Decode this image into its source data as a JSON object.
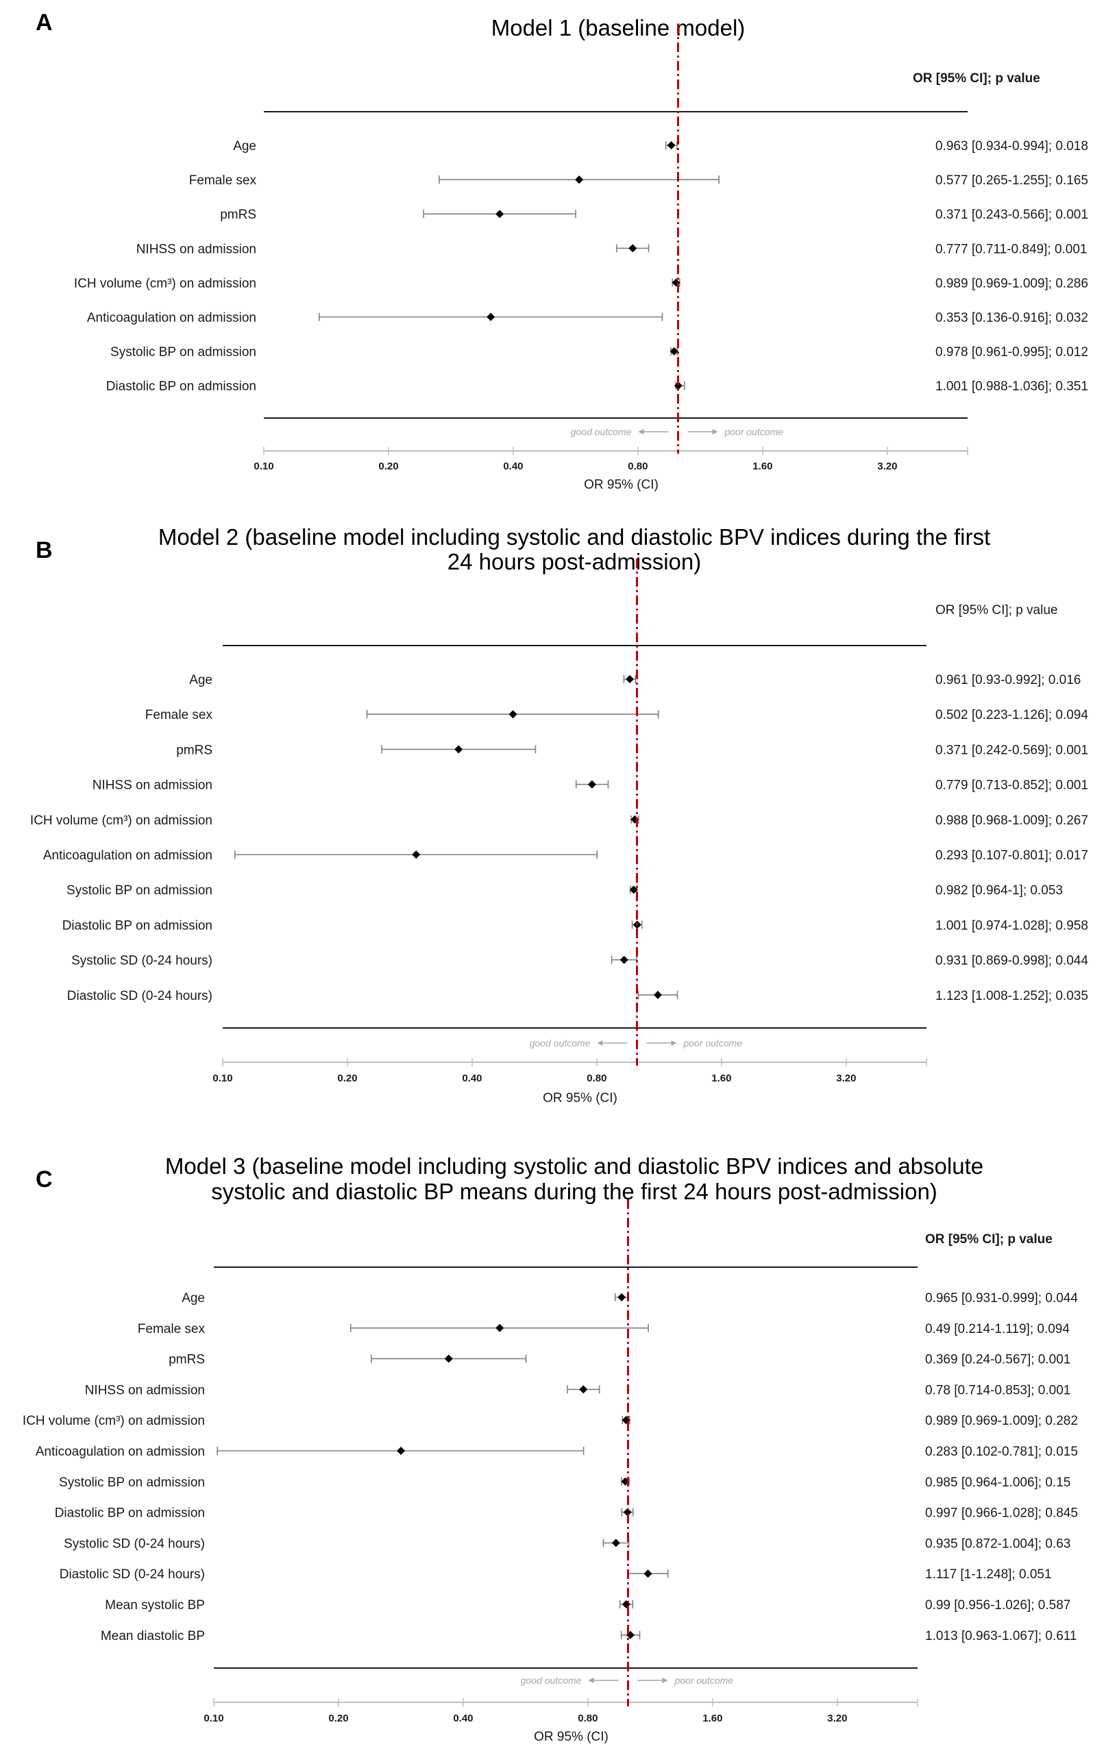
{
  "colors": {
    "reference_line": "#c00000",
    "marker": "#000000",
    "whisker": "#808080",
    "axis": "#bfbfbf",
    "rule": "#1a1a1a",
    "direction_text": "#a6a6a6"
  },
  "chart_data": [
    {
      "type": "forest",
      "panel_label": "A",
      "title": "Model 1 (baseline model)",
      "header": "OR [95% CI]; p value",
      "header_bold": true,
      "xlabel": "OR 95% (CI)",
      "x_scale": "log2",
      "xlim": [
        0.1,
        5.0
      ],
      "ticks": [
        0.1,
        0.2,
        0.4,
        0.8,
        1.6,
        3.2
      ],
      "tick_labels": [
        "0.10",
        "0.20",
        "0.40",
        "0.80",
        "1.60",
        "3.20"
      ],
      "reference_value": 1.0,
      "direction_labels": {
        "left": "good outcome",
        "right": "poor outcome"
      },
      "rows": [
        {
          "label": "Age",
          "or": 0.963,
          "lower": 0.934,
          "upper": 0.994,
          "text": "0.963 [0.934-0.994];  0.018"
        },
        {
          "label": "Female sex",
          "or": 0.577,
          "lower": 0.265,
          "upper": 1.255,
          "text": "0.577 [0.265-1.255];  0.165"
        },
        {
          "label": "pmRS",
          "or": 0.371,
          "lower": 0.243,
          "upper": 0.566,
          "text": "0.371 [0.243-0.566];  0.001"
        },
        {
          "label": "NIHSS on admission",
          "or": 0.777,
          "lower": 0.711,
          "upper": 0.849,
          "text": "0.777 [0.711-0.849];  0.001"
        },
        {
          "label": "ICH volume (cm³) on admission",
          "or": 0.989,
          "lower": 0.969,
          "upper": 1.009,
          "text": "0.989 [0.969-1.009];  0.286"
        },
        {
          "label": "Anticoagulation on admission",
          "or": 0.353,
          "lower": 0.136,
          "upper": 0.916,
          "text": "0.353 [0.136-0.916];  0.032"
        },
        {
          "label": "Systolic BP on admission",
          "or": 0.978,
          "lower": 0.961,
          "upper": 0.995,
          "text": "0.978 [0.961-0.995];  0.012"
        },
        {
          "label": "Diastolic BP on admission",
          "or": 1.001,
          "lower": 0.988,
          "upper": 1.036,
          "text": "1.001 [0.988-1.036];  0.351"
        }
      ]
    },
    {
      "type": "forest",
      "panel_label": "B",
      "title": "Model 2 (baseline model including systolic and diastolic BPV indices during the first\n24 hours post-admission)",
      "header": "OR [95% CI];  p value",
      "header_bold": false,
      "xlabel": "OR 95% (CI)",
      "x_scale": "log2",
      "xlim": [
        0.1,
        5.0
      ],
      "ticks": [
        0.1,
        0.2,
        0.4,
        0.8,
        1.6,
        3.2
      ],
      "tick_labels": [
        "0.10",
        "0.20",
        "0.40",
        "0.80",
        "1.60",
        "3.20"
      ],
      "reference_value": 1.0,
      "direction_labels": {
        "left": "good outcome",
        "right": "poor outcome"
      },
      "rows": [
        {
          "label": "Age",
          "or": 0.961,
          "lower": 0.93,
          "upper": 0.992,
          "text": "0.961 [0.93-0.992];  0.016"
        },
        {
          "label": "Female sex",
          "or": 0.502,
          "lower": 0.223,
          "upper": 1.126,
          "text": "0.502 [0.223-1.126];  0.094"
        },
        {
          "label": "pmRS",
          "or": 0.371,
          "lower": 0.242,
          "upper": 0.569,
          "text": "0.371 [0.242-0.569];  0.001"
        },
        {
          "label": "NIHSS on admission",
          "or": 0.779,
          "lower": 0.713,
          "upper": 0.852,
          "text": "0.779 [0.713-0.852];  0.001"
        },
        {
          "label": "ICH volume  (cm³) on admission",
          "or": 0.988,
          "lower": 0.968,
          "upper": 1.009,
          "text": "0.988 [0.968-1.009];  0.267"
        },
        {
          "label": "Anticoagulation on admission",
          "or": 0.293,
          "lower": 0.107,
          "upper": 0.801,
          "text": "0.293 [0.107-0.801];  0.017"
        },
        {
          "label": "Systolic BP on admission",
          "or": 0.982,
          "lower": 0.964,
          "upper": 1.0,
          "text": "0.982 [0.964-1];  0.053"
        },
        {
          "label": "Diastolic BP on admission",
          "or": 1.001,
          "lower": 0.974,
          "upper": 1.028,
          "text": "1.001 [0.974-1.028];  0.958"
        },
        {
          "label": "Systolic SD (0-24 hours)",
          "or": 0.931,
          "lower": 0.869,
          "upper": 0.998,
          "text": "0.931 [0.869-0.998];  0.044"
        },
        {
          "label": "Diastolic SD (0-24 hours)",
          "or": 1.123,
          "lower": 1.008,
          "upper": 1.252,
          "text": "1.123 [1.008-1.252];  0.035"
        }
      ]
    },
    {
      "type": "forest",
      "panel_label": "C",
      "title": "Model 3 (baseline model including systolic and diastolic BPV indices and absolute\nsystolic and diastolic BP means during the first 24 hours post-admission)",
      "header": "OR [95% CI]; p value",
      "header_bold": true,
      "xlabel": "OR 95% (CI)",
      "x_scale": "log2",
      "xlim": [
        0.1,
        5.0
      ],
      "ticks": [
        0.1,
        0.2,
        0.4,
        0.8,
        1.6,
        3.2
      ],
      "tick_labels": [
        "0.10",
        "0.20",
        "0.40",
        "0.80",
        "1.60",
        "3.20"
      ],
      "reference_value": 1.0,
      "direction_labels": {
        "left": "good outcome",
        "right": "poor outcome"
      },
      "rows": [
        {
          "label": "Age",
          "or": 0.965,
          "lower": 0.931,
          "upper": 0.999,
          "text": "0.965 [0.931-0.999];  0.044"
        },
        {
          "label": "Female sex",
          "or": 0.49,
          "lower": 0.214,
          "upper": 1.119,
          "text": "0.49 [0.214-1.119];  0.094"
        },
        {
          "label": "pmRS",
          "or": 0.369,
          "lower": 0.24,
          "upper": 0.567,
          "text": "0.369 [0.24-0.567];  0.001"
        },
        {
          "label": "NIHSS on admission",
          "or": 0.78,
          "lower": 0.714,
          "upper": 0.853,
          "text": "0.78 [0.714-0.853];  0.001"
        },
        {
          "label": "ICH volume  (cm³) on admission",
          "or": 0.989,
          "lower": 0.969,
          "upper": 1.009,
          "text": "0.989 [0.969-1.009];  0.282"
        },
        {
          "label": "Anticoagulation on admission",
          "or": 0.283,
          "lower": 0.102,
          "upper": 0.781,
          "text": "0.283 [0.102-0.781];  0.015"
        },
        {
          "label": "Systolic BP on admission",
          "or": 0.985,
          "lower": 0.964,
          "upper": 1.006,
          "text": "0.985 [0.964-1.006];  0.15"
        },
        {
          "label": "Diastolic BP on admission",
          "or": 0.997,
          "lower": 0.966,
          "upper": 1.028,
          "text": "0.997 [0.966-1.028];  0.845"
        },
        {
          "label": "Systolic SD (0-24 hours)",
          "or": 0.935,
          "lower": 0.872,
          "upper": 1.004,
          "text": "0.935 [0.872-1.004];  0.63"
        },
        {
          "label": "Diastolic SD (0-24 hours)",
          "or": 1.117,
          "lower": 1.0,
          "upper": 1.248,
          "text": "1.117 [1-1.248];  0.051"
        },
        {
          "label": "Mean systolic BP",
          "or": 0.99,
          "lower": 0.956,
          "upper": 1.026,
          "text": "0.99 [0.956-1.026];  0.587"
        },
        {
          "label": "Mean diastolic BP",
          "or": 1.013,
          "lower": 0.963,
          "upper": 1.067,
          "text": "1.013 [0.963-1.067];  0.611"
        }
      ]
    }
  ]
}
